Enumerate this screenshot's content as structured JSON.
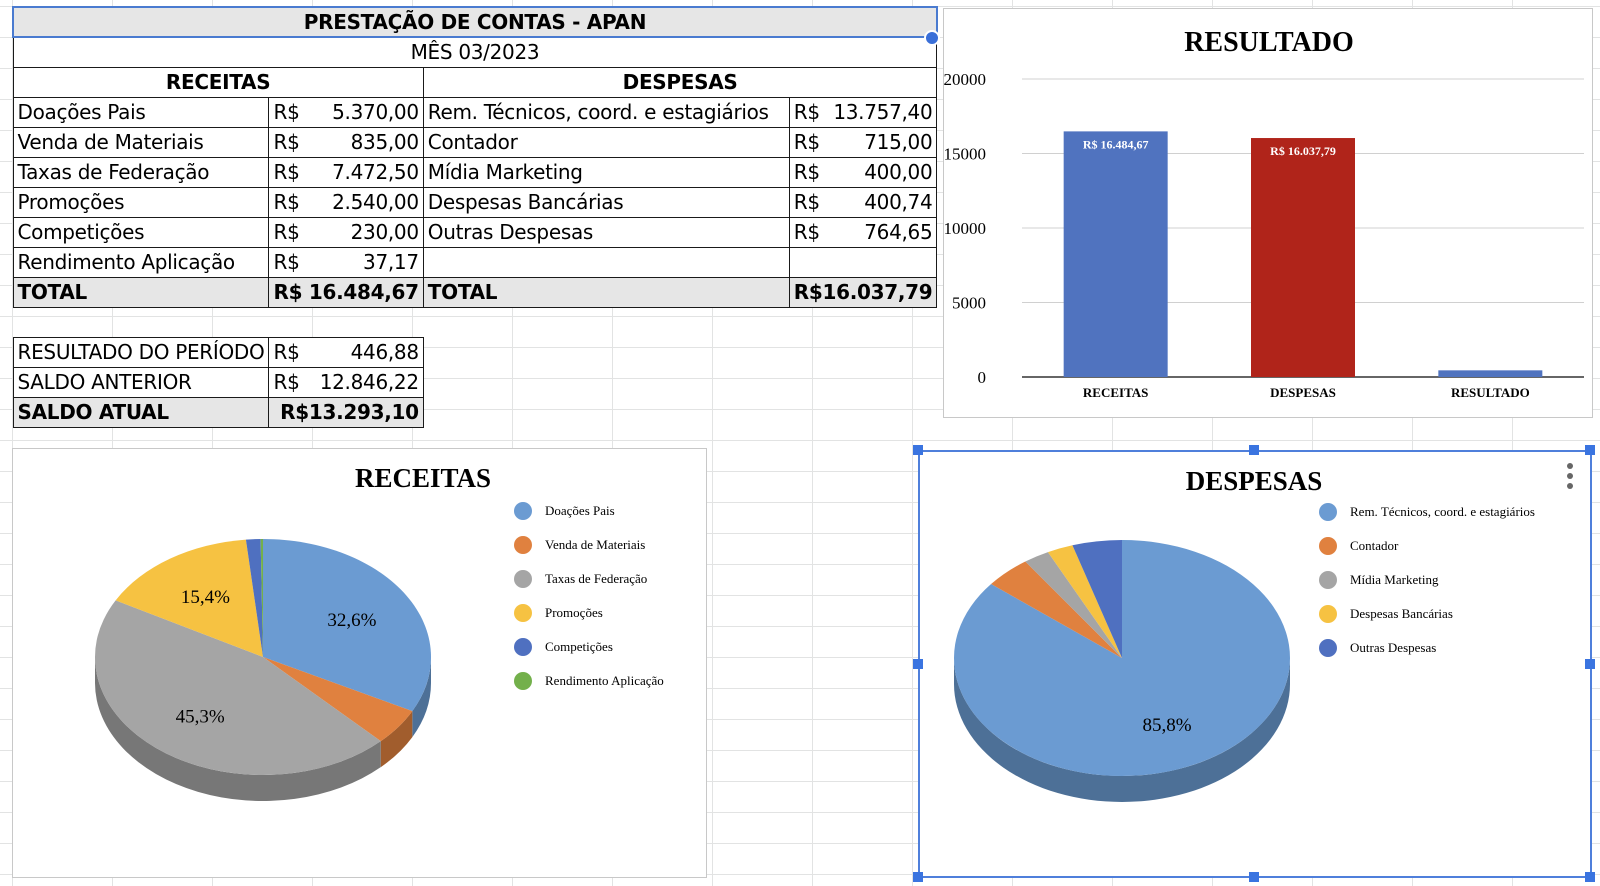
{
  "sheet": {
    "title": "PRESTAÇÃO DE CONTAS - APAN",
    "month": "MÊS 03/2023",
    "receitas_header": "RECEITAS",
    "despesas_header": "DESPESAS",
    "currency": "R$",
    "rows": [
      {
        "r_label": "Doações Pais",
        "r_value": "5.370,00",
        "d_label": "Rem. Técnicos, coord. e estagiários",
        "d_value": "13.757,40"
      },
      {
        "r_label": "Venda de Materiais",
        "r_value": "835,00",
        "d_label": "Contador",
        "d_value": "715,00"
      },
      {
        "r_label": "Taxas de Federação",
        "r_value": "7.472,50",
        "d_label": "Mídia Marketing",
        "d_value": "400,00"
      },
      {
        "r_label": "Promoções",
        "r_value": "2.540,00",
        "d_label": "Despesas Bancárias",
        "d_value": "400,74"
      },
      {
        "r_label": "Competições",
        "r_value": "230,00",
        "d_label": "Outras Despesas",
        "d_value": "764,65"
      },
      {
        "r_label": "Rendimento Aplicação",
        "r_value": "37,17",
        "d_label": "",
        "d_value": ""
      }
    ],
    "total_label": "TOTAL",
    "total_receitas": "R$ 16.484,67",
    "total_despesas": "R$16.037,79",
    "summary": [
      {
        "label": "RESULTADO DO PERÍODO",
        "cur": "R$",
        "value": "446,88"
      },
      {
        "label": "SALDO ANTERIOR",
        "cur": "R$",
        "value": "12.846,22"
      }
    ],
    "saldo_atual_label": "SALDO ATUAL",
    "saldo_atual_value": "R$13.293,10"
  },
  "chart_data": [
    {
      "type": "bar",
      "title": "RESULTADO",
      "categories": [
        "RECEITAS",
        "DESPESAS",
        "RESULTADO"
      ],
      "values": [
        16484.67,
        16037.79,
        446.88
      ],
      "data_labels": [
        "R$  16.484,67",
        "R$  16.037,79",
        ""
      ],
      "colors": [
        "#5073bf",
        "#b0241a",
        "#5073bf"
      ],
      "yticks": [
        0,
        5000,
        10000,
        15000,
        20000
      ],
      "ylim": [
        0,
        20000
      ],
      "grid": true
    },
    {
      "type": "pie",
      "title": "RECEITAS",
      "labels": [
        "Doações Pais",
        "Venda de Materiais",
        "Taxas de Federação",
        "Promoções",
        "Competições",
        "Rendimento Aplicação"
      ],
      "values": [
        5370.0,
        835.0,
        7472.5,
        2540.0,
        230.0,
        37.17
      ],
      "colors": [
        "#6b9bd2",
        "#e0813f",
        "#a5a5a5",
        "#f6c242",
        "#4f70c0",
        "#73b04b"
      ],
      "shown_pct": {
        "0": "32,6%",
        "2": "45,3%",
        "3": "15,4%"
      },
      "legend": "right"
    },
    {
      "type": "pie",
      "title": "DESPESAS",
      "labels": [
        "Rem. Técnicos, coord. e estagiários",
        "Contador",
        "Mídia Marketing",
        "Despesas Bancárias",
        "Outras Despesas"
      ],
      "values": [
        13757.4,
        715.0,
        400.0,
        400.74,
        764.65
      ],
      "colors": [
        "#6b9bd2",
        "#e0813f",
        "#a5a5a5",
        "#f6c242",
        "#4f70c0"
      ],
      "shown_pct": {
        "0": "85,8%"
      },
      "legend": "right"
    }
  ]
}
